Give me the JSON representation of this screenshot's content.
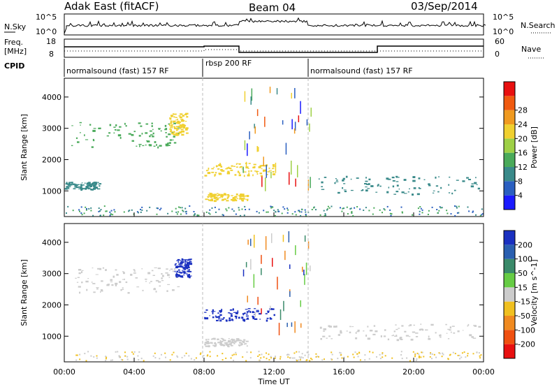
{
  "header": {
    "station": "Adak East (fitACF)",
    "beam": "Beam 04",
    "date": "03/Sep/2014"
  },
  "nsky_panel": {
    "left_label": "N.Sky",
    "right_label": "N.Search",
    "left_ticks": [
      "10^5",
      "10^0"
    ],
    "right_ticks": [
      "10^5",
      "10^0"
    ]
  },
  "freq_panel": {
    "left_label_line1": "Freq.",
    "left_label_line2": "[MHz]",
    "right_label": "Nave",
    "left_ticks": [
      "18",
      "8"
    ],
    "right_ticks": [
      "60",
      "0"
    ]
  },
  "cpid": {
    "label": "CPID",
    "segments": [
      "normalsound (fast) 157 RF",
      "rbsp 200 RF",
      "normalsound (fast) 157 RF"
    ]
  },
  "chart_data": [
    {
      "type": "heatmap",
      "title": "Power",
      "ylabel": "Slant Range [km]",
      "xlabel": "",
      "ylim": [
        180,
        4600
      ],
      "y_ticks": [
        "1000",
        "2000",
        "3000",
        "4000"
      ],
      "colorbar": {
        "label": "Power [dB]",
        "range": [
          0,
          30
        ],
        "ticks": [
          "4",
          "8",
          "12",
          "16",
          "20",
          "24",
          "28"
        ],
        "colors": [
          "#1a1aff",
          "#2a5fc0",
          "#3a8a8a",
          "#4aaa5a",
          "#9ed046",
          "#f0d030",
          "#f09a20",
          "#f05a10",
          "#e81010"
        ]
      },
      "echo_regions": [
        {
          "t": [
            0.4,
            6.5
          ],
          "range": [
            2400,
            3200
          ],
          "power": 12
        },
        {
          "t": [
            0.0,
            2.0
          ],
          "range": [
            1050,
            1300
          ],
          "power": 8
        },
        {
          "t": [
            6.0,
            7.0
          ],
          "range": [
            2800,
            3500
          ],
          "power": 18
        },
        {
          "t": [
            8.0,
            12.0
          ],
          "range": [
            1500,
            1900
          ],
          "power": 20
        },
        {
          "t": [
            8.0,
            10.5
          ],
          "range": [
            700,
            950
          ],
          "power": 20
        },
        {
          "t": [
            14.5,
            23.8
          ],
          "range": [
            900,
            1500
          ],
          "power": 8
        }
      ]
    },
    {
      "type": "heatmap",
      "title": "Velocity",
      "ylabel": "Slant Range [km]",
      "xlabel": "Time UT",
      "ylim": [
        180,
        4600
      ],
      "y_ticks": [
        "1000",
        "2000",
        "3000",
        "4000"
      ],
      "x_ticks": [
        "00:00",
        "04:00",
        "08:00",
        "12:00",
        "16:00",
        "20:00",
        "00:00"
      ],
      "colorbar": {
        "label": "Velocity [m s^-1]",
        "range": [
          -250,
          250
        ],
        "ticks": [
          "200",
          "100",
          "50",
          "15",
          "-15",
          "-50",
          "-100",
          "-200"
        ],
        "colors": [
          "#1a30c0",
          "#2a5fb0",
          "#3a8a6a",
          "#66cc44",
          "#cccccc",
          "#f0c020",
          "#f08a20",
          "#f05010",
          "#e81010"
        ]
      },
      "echo_regions": [
        {
          "t": [
            0.4,
            6.5
          ],
          "range": [
            2400,
            3200
          ],
          "velocity": 0
        },
        {
          "t": [
            6.3,
            7.2
          ],
          "range": [
            2900,
            3500
          ],
          "velocity": 150
        },
        {
          "t": [
            8.0,
            12.0
          ],
          "range": [
            1500,
            1900
          ],
          "velocity": 200
        },
        {
          "t": [
            8.0,
            10.5
          ],
          "range": [
            700,
            950
          ],
          "velocity": 0
        },
        {
          "t": [
            14.5,
            23.8
          ],
          "range": [
            900,
            1400
          ],
          "velocity": 0
        }
      ]
    }
  ]
}
